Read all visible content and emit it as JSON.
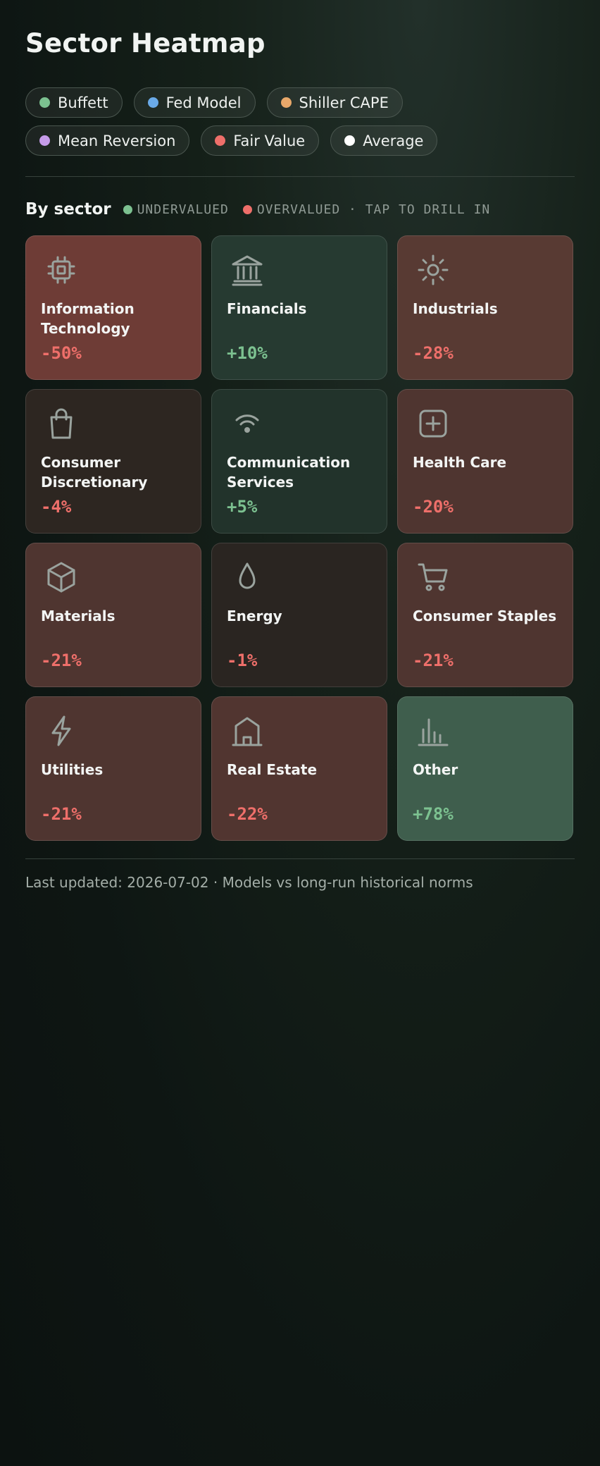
{
  "page": {
    "title": "Sector Heatmap"
  },
  "models": [
    {
      "label": "Buffett",
      "color": "#7cc190"
    },
    {
      "label": "Fed Model",
      "color": "#6aaae8"
    },
    {
      "label": "Shiller CAPE",
      "color": "#e8a86a"
    },
    {
      "label": "Mean Reversion",
      "color": "#c59be8"
    },
    {
      "label": "Fair Value",
      "color": "#ee6f6a"
    },
    {
      "label": "Average",
      "color": "#ffffff"
    }
  ],
  "section": {
    "title": "By sector",
    "legend_under": "UNDERVALUED",
    "legend_over": "OVERVALUED · TAP TO DRILL IN",
    "under_color": "#7cc190",
    "over_color": "#ee6f6a"
  },
  "sectors": [
    {
      "name": "Information Technology",
      "value": "-50%",
      "icon": "chip-icon",
      "tile_color": "#6e3c36"
    },
    {
      "name": "Financials",
      "value": "+10%",
      "icon": "bank-icon",
      "tile_color": "#263a31"
    },
    {
      "name": "Industrials",
      "value": "-28%",
      "icon": "sun-icon",
      "tile_color": "#583a33"
    },
    {
      "name": "Consumer Discretionary",
      "value": "-4%",
      "icon": "shopping-bag-icon",
      "tile_color": "#2d2621"
    },
    {
      "name": "Communication Services",
      "value": "+5%",
      "icon": "wifi-icon",
      "tile_color": "#22332b"
    },
    {
      "name": "Health Care",
      "value": "-20%",
      "icon": "medical-plus-icon",
      "tile_color": "#4f3530"
    },
    {
      "name": "Materials",
      "value": "-21%",
      "icon": "cube-icon",
      "tile_color": "#4f3530"
    },
    {
      "name": "Energy",
      "value": "-1%",
      "icon": "droplet-icon",
      "tile_color": "#2a2521"
    },
    {
      "name": "Consumer Staples",
      "value": "-21%",
      "icon": "cart-icon",
      "tile_color": "#4f3530"
    },
    {
      "name": "Utilities",
      "value": "-21%",
      "icon": "lightning-icon",
      "tile_color": "#4f3530"
    },
    {
      "name": "Real Estate",
      "value": "-22%",
      "icon": "house-icon",
      "tile_color": "#513530"
    },
    {
      "name": "Other",
      "value": "+78%",
      "icon": "bar-chart-icon",
      "tile_color": "#3f5e4d"
    }
  ],
  "footer": {
    "text": "Last updated: 2026-07-02 · Models vs long-run historical norms"
  }
}
